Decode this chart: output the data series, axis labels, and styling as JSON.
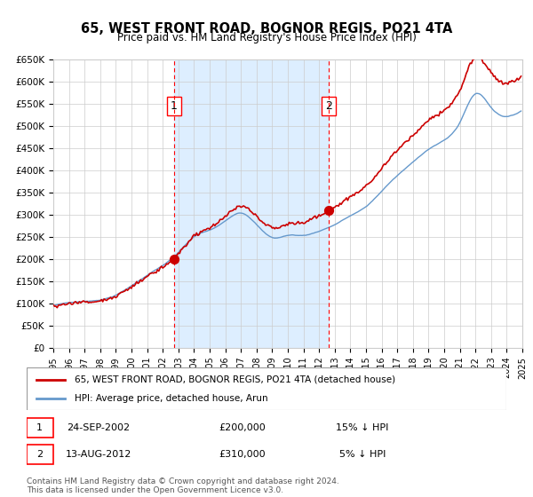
{
  "title": "65, WEST FRONT ROAD, BOGNOR REGIS, PO21 4TA",
  "subtitle": "Price paid vs. HM Land Registry's House Price Index (HPI)",
  "xlabel": "",
  "ylabel": "",
  "ylim": [
    0,
    650000
  ],
  "yticks": [
    0,
    50000,
    100000,
    150000,
    200000,
    250000,
    300000,
    350000,
    400000,
    450000,
    500000,
    550000,
    600000,
    650000
  ],
  "ytick_labels": [
    "£0",
    "£50K",
    "£100K",
    "£150K",
    "£200K",
    "£250K",
    "£300K",
    "£350K",
    "£400K",
    "£450K",
    "£500K",
    "£550K",
    "£600K",
    "£650K"
  ],
  "hpi_color": "#6699cc",
  "price_color": "#cc0000",
  "bg_color": "#ddeeff",
  "sale1_date": "2002-09-24",
  "sale1_price": 200000,
  "sale1_label": "1",
  "sale1_year": 2002.73,
  "sale2_date": "2012-08-13",
  "sale2_price": 310000,
  "sale2_label": "2",
  "sale2_year": 2012.62,
  "legend_entry1": "65, WEST FRONT ROAD, BOGNOR REGIS, PO21 4TA (detached house)",
  "legend_entry2": "HPI: Average price, detached house, Arun",
  "table_row1": [
    "1",
    "24-SEP-2002",
    "£200,000",
    "15% ↓ HPI"
  ],
  "table_row2": [
    "2",
    "13-AUG-2012",
    "£310,000",
    "5% ↓ HPI"
  ],
  "footnote": "Contains HM Land Registry data © Crown copyright and database right 2024.\nThis data is licensed under the Open Government Licence v3.0.",
  "start_year": 1995,
  "end_year": 2025
}
